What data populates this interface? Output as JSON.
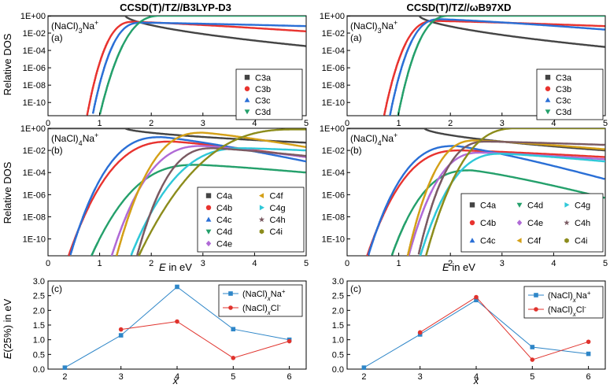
{
  "figure": {
    "col_titles": [
      "CCSD(T)/TZ//B3LYP-D3",
      "CCSD(T)/TZ//ωB97XD"
    ],
    "ylabel_dos": "Relative DOS",
    "ylabel_e": "E(25%) in eV",
    "xlabel_energy": "E in eV",
    "xlabel_x": "x"
  },
  "chart_data": [
    {
      "id": "left-a",
      "type": "line",
      "title": "CCSD(T)/TZ//B3LYP-D3",
      "panel_label": "(a)",
      "formula": "(NaCl)3Na+",
      "xlabel": "",
      "ylabel": "Relative DOS",
      "yscale": "log",
      "xlim": [
        0,
        5
      ],
      "ylim": [
        3e-12,
        1
      ],
      "xticks": [
        0,
        1,
        2,
        3,
        4,
        5
      ],
      "yticks": [
        "1E+00",
        "1E-02",
        "1E-04",
        "1E-06",
        "1E-08",
        "1E-10"
      ],
      "legend": "bottom-right",
      "series": [
        {
          "name": "C3a",
          "color": "#444444",
          "marker": "square",
          "onset": 0.0,
          "peak_x": 1.5,
          "peak_log": 0.0,
          "end_log": -3.5,
          "steep": 0.9
        },
        {
          "name": "C3b",
          "color": "#e8332f",
          "marker": "circle",
          "onset": 0.72,
          "peak_x": 1.65,
          "peak_log": -0.7,
          "end_log": -1.8,
          "steep": 0.9
        },
        {
          "name": "C3c",
          "color": "#2a6fd6",
          "marker": "triangle",
          "onset": 0.82,
          "peak_x": 1.8,
          "peak_log": -0.8,
          "end_log": -1.2,
          "steep": 0.85
        },
        {
          "name": "C3d",
          "color": "#24a06b",
          "marker": "tri-down",
          "onset": 0.98,
          "peak_x": 2.2,
          "peak_log": 0.0,
          "end_log": 0.0,
          "steep": 0.9
        }
      ]
    },
    {
      "id": "left-b",
      "type": "line",
      "title": "",
      "panel_label": "(b)",
      "formula": "(NaCl)4Na+",
      "xlabel": "E in eV",
      "ylabel": "Relative DOS",
      "yscale": "log",
      "xlim": [
        0,
        5
      ],
      "ylim": [
        3e-12,
        1
      ],
      "xticks": [
        0,
        1,
        2,
        3,
        4,
        5
      ],
      "yticks": [
        "1E+00",
        "1E-02",
        "1E-04",
        "1E-06",
        "1E-08",
        "1E-10"
      ],
      "legend": "bottom-right",
      "series": [
        {
          "name": "C4a",
          "color": "#444444",
          "marker": "square",
          "onset": 0.0,
          "peak_x": 1.5,
          "peak_log": 0.0,
          "end_log": -1.3,
          "steep": 0.8
        },
        {
          "name": "C4b",
          "color": "#e8332f",
          "marker": "circle",
          "onset": 0.28,
          "peak_x": 2.4,
          "peak_log": -1.2,
          "end_log": -2.6,
          "steep": 0.8
        },
        {
          "name": "C4c",
          "color": "#2a6fd6",
          "marker": "triangle",
          "onset": 0.35,
          "peak_x": 2.2,
          "peak_log": -0.8,
          "end_log": -3.0,
          "steep": 0.8
        },
        {
          "name": "C4d",
          "color": "#24a06b",
          "marker": "tri-down",
          "onset": 0.52,
          "peak_x": 2.9,
          "peak_log": -3.3,
          "end_log": -4.0,
          "steep": 0.8
        },
        {
          "name": "C4e",
          "color": "#b06ad6",
          "marker": "diamond",
          "onset": 1.1,
          "peak_x": 3.0,
          "peak_log": -1.6,
          "end_log": -2.6,
          "steep": 0.8
        },
        {
          "name": "C4f",
          "color": "#d4a017",
          "marker": "tri-left",
          "onset": 1.28,
          "peak_x": 3.0,
          "peak_log": -0.4,
          "end_log": -1.7,
          "steep": 0.75
        },
        {
          "name": "C4g",
          "color": "#2fc8d8",
          "marker": "tri-right",
          "onset": 1.42,
          "peak_x": 3.8,
          "peak_log": -1.8,
          "end_log": -2.0,
          "steep": 0.8
        },
        {
          "name": "C4h",
          "color": "#7a5a62",
          "marker": "star",
          "onset": 1.6,
          "peak_x": 3.2,
          "peak_log": -1.8,
          "end_log": -2.5,
          "steep": 0.8
        },
        {
          "name": "C4i",
          "color": "#8c8c1c",
          "marker": "hexagon",
          "onset": 1.7,
          "peak_x": 4.8,
          "peak_log": -0.1,
          "end_log": -0.1,
          "steep": 0.85
        }
      ]
    },
    {
      "id": "left-c",
      "type": "line",
      "title": "",
      "panel_label": "(c)",
      "xlabel": "x",
      "ylabel": "E(25%) in eV",
      "xlim": [
        1.7,
        6.3
      ],
      "ylim": [
        0,
        3.0
      ],
      "xticks": [
        2,
        3,
        4,
        5,
        6
      ],
      "yticks": [
        0.0,
        0.5,
        1.0,
        1.5,
        2.0,
        2.5,
        3.0
      ],
      "legend": "top-right",
      "series": [
        {
          "name": "(NaCl)xNa+",
          "color": "#2e86c8",
          "marker": "square",
          "x": [
            2,
            3,
            4,
            5,
            6
          ],
          "y": [
            0.05,
            1.15,
            2.8,
            1.36,
            1.0
          ]
        },
        {
          "name": "(NaCl)xCl-",
          "color": "#e0332d",
          "marker": "circle",
          "x": [
            3,
            4,
            5,
            6
          ],
          "y": [
            1.35,
            1.62,
            0.38,
            0.95
          ]
        }
      ]
    },
    {
      "id": "right-a",
      "type": "line",
      "title": "CCSD(T)/TZ//ωB97XD",
      "panel_label": "(a)",
      "formula": "(NaCl)3Na+",
      "xlabel": "",
      "ylabel": "",
      "yscale": "log",
      "xlim": [
        0,
        5
      ],
      "ylim": [
        3e-12,
        1
      ],
      "xticks": [
        0,
        1,
        2,
        3,
        4,
        5
      ],
      "yticks": [
        "1E+00",
        "1E-02",
        "1E-04",
        "1E-06",
        "1E-08",
        "1E-10"
      ],
      "legend": "bottom-right",
      "series": [
        {
          "name": "C3a",
          "color": "#444444",
          "marker": "square",
          "onset": 0.0,
          "peak_x": 1.4,
          "peak_log": 0.0,
          "end_log": -3.6,
          "steep": 0.9
        },
        {
          "name": "C3b",
          "color": "#e8332f",
          "marker": "circle",
          "onset": 0.68,
          "peak_x": 1.7,
          "peak_log": -0.6,
          "end_log": -1.2,
          "steep": 0.9
        },
        {
          "name": "C3c",
          "color": "#2a6fd6",
          "marker": "triangle",
          "onset": 0.8,
          "peak_x": 1.8,
          "peak_log": -0.4,
          "end_log": -1.6,
          "steep": 0.85
        },
        {
          "name": "C3d",
          "color": "#24a06b",
          "marker": "tri-down",
          "onset": 0.97,
          "peak_x": 2.0,
          "peak_log": 0.0,
          "end_log": 0.0,
          "steep": 0.9
        }
      ]
    },
    {
      "id": "right-b",
      "type": "line",
      "title": "",
      "panel_label": "(b)",
      "formula": "(NaCl)4Na+",
      "xlabel": "E in eV",
      "ylabel": "",
      "yscale": "log",
      "xlim": [
        0,
        5
      ],
      "ylim": [
        3e-12,
        1
      ],
      "xticks": [
        0,
        1,
        2,
        3,
        4,
        5
      ],
      "yticks": [
        "1E+00",
        "1E-02",
        "1E-04",
        "1E-06",
        "1E-08",
        "1E-10"
      ],
      "legend": "bottom-right",
      "series": [
        {
          "name": "C4a",
          "color": "#444444",
          "marker": "square",
          "onset": 0.0,
          "peak_x": 1.5,
          "peak_log": 0.0,
          "end_log": -2.0,
          "steep": 0.8
        },
        {
          "name": "C4b",
          "color": "#e8332f",
          "marker": "circle",
          "onset": 0.22,
          "peak_x": 2.2,
          "peak_log": -2.0,
          "end_log": -2.6,
          "steep": 0.8
        },
        {
          "name": "C4c",
          "color": "#2a6fd6",
          "marker": "triangle",
          "onset": 0.28,
          "peak_x": 2.1,
          "peak_log": -1.6,
          "end_log": -4.6,
          "steep": 0.8
        },
        {
          "name": "C4d",
          "color": "#24a06b",
          "marker": "tri-down",
          "onset": 0.58,
          "peak_x": 2.4,
          "peak_log": -3.8,
          "end_log": -6.3,
          "steep": 0.8
        },
        {
          "name": "C4e",
          "color": "#b06ad6",
          "marker": "diamond",
          "onset": 1.05,
          "peak_x": 2.6,
          "peak_log": -2.2,
          "end_log": -2.8,
          "steep": 0.8
        },
        {
          "name": "C4f",
          "color": "#d4a017",
          "marker": "tri-left",
          "onset": 1.1,
          "peak_x": 2.5,
          "peak_log": -1.1,
          "end_log": -1.9,
          "steep": 0.8
        },
        {
          "name": "C4g",
          "color": "#2fc8d8",
          "marker": "tri-right",
          "onset": 1.25,
          "peak_x": 3.0,
          "peak_log": -2.3,
          "end_log": -3.0,
          "steep": 0.8
        },
        {
          "name": "C4h",
          "color": "#7a5a62",
          "marker": "star",
          "onset": 1.3,
          "peak_x": 2.7,
          "peak_log": -1.2,
          "end_log": -1.5,
          "steep": 0.8
        },
        {
          "name": "C4i",
          "color": "#8c8c1c",
          "marker": "hexagon",
          "onset": 1.5,
          "peak_x": 3.3,
          "peak_log": 0.0,
          "end_log": 0.0,
          "steep": 0.9
        }
      ]
    },
    {
      "id": "right-c",
      "type": "line",
      "title": "",
      "panel_label": "(c)",
      "xlabel": "x",
      "ylabel": "",
      "xlim": [
        1.7,
        6.3
      ],
      "ylim": [
        0,
        3.0
      ],
      "xticks": [
        2,
        3,
        4,
        5,
        6
      ],
      "yticks": [
        0.0,
        0.5,
        1.0,
        1.5,
        2.0,
        2.5,
        3.0
      ],
      "legend": "top-right",
      "series": [
        {
          "name": "(NaCl)xNa+",
          "color": "#2e86c8",
          "marker": "square",
          "x": [
            2,
            3,
            4,
            5,
            6
          ],
          "y": [
            0.05,
            1.18,
            2.35,
            0.75,
            0.52
          ]
        },
        {
          "name": "(NaCl)xCl-",
          "color": "#e0332d",
          "marker": "circle",
          "x": [
            3,
            4,
            5,
            6
          ],
          "y": [
            1.25,
            2.45,
            0.32,
            0.93
          ]
        }
      ]
    }
  ]
}
